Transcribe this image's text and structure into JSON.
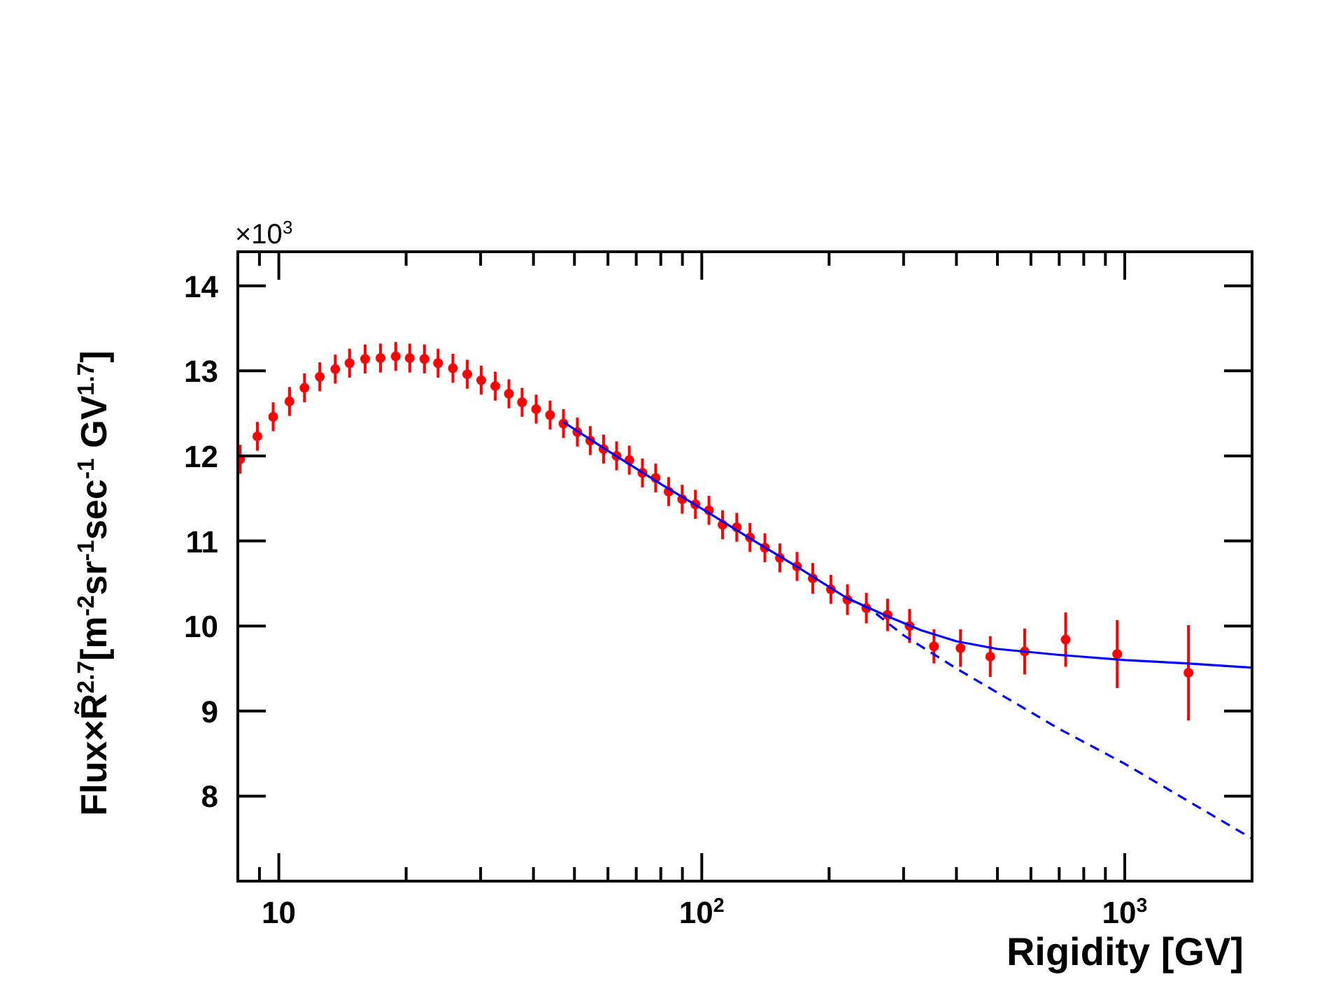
{
  "chart_data": {
    "type": "scatter",
    "xlabel": "Rigidity [GV]",
    "ylabel": "Flux×R̃$^{2.7}$[m$^{-2}$sr$^{-1}$sec$^{-1}$ GV$^{1.7}$]",
    "annotations": [
      "×10$^{3}$"
    ],
    "log": "x",
    "grid": false,
    "xlim": [
      8,
      2000
    ],
    "ylim": [
      7,
      14.4
    ],
    "xticks": [
      {
        "value": 8,
        "label": null
      },
      {
        "value": 9,
        "label": null
      },
      {
        "value": 10,
        "label": "10"
      },
      {
        "value": 20,
        "label": null
      },
      {
        "value": 30,
        "label": null
      },
      {
        "value": 40,
        "label": null
      },
      {
        "value": 50,
        "label": null
      },
      {
        "value": 60,
        "label": null
      },
      {
        "value": 70,
        "label": null
      },
      {
        "value": 80,
        "label": null
      },
      {
        "value": 90,
        "label": null
      },
      {
        "value": 100,
        "label": "10$^{2}$"
      },
      {
        "value": 200,
        "label": null
      },
      {
        "value": 300,
        "label": null
      },
      {
        "value": 400,
        "label": null
      },
      {
        "value": 500,
        "label": null
      },
      {
        "value": 600,
        "label": null
      },
      {
        "value": 700,
        "label": null
      },
      {
        "value": 800,
        "label": null
      },
      {
        "value": 900,
        "label": null
      },
      {
        "value": 1000,
        "label": "10$^{3}$"
      },
      {
        "value": 2000,
        "label": null
      }
    ],
    "yticks": [
      8,
      9,
      10,
      11,
      12,
      13,
      14
    ],
    "series": [
      {
        "type": "scatter",
        "color": "#ff0000",
        "marker": "circle",
        "x": [
          8.1,
          8.9,
          9.7,
          10.6,
          11.5,
          12.5,
          13.6,
          14.7,
          16.0,
          17.4,
          18.9,
          20.4,
          22.1,
          23.8,
          25.8,
          27.9,
          30.1,
          32.5,
          35.0,
          37.6,
          40.6,
          43.8,
          47.1,
          50.8,
          54.5,
          58.6,
          62.9,
          67.4,
          72.4,
          77.8,
          83.5,
          89.9,
          96.6,
          104,
          112,
          121,
          130,
          141,
          153,
          168,
          183,
          202,
          221,
          245,
          275,
          310,
          354,
          409,
          481,
          580,
          725,
          960,
          1415
        ],
        "values": [
          11.96,
          12.23,
          12.46,
          12.64,
          12.8,
          12.93,
          13.02,
          13.09,
          13.14,
          13.15,
          13.17,
          13.15,
          13.14,
          13.09,
          13.03,
          12.96,
          12.89,
          12.82,
          12.73,
          12.63,
          12.55,
          12.48,
          12.38,
          12.28,
          12.18,
          12.08,
          12.0,
          11.95,
          11.8,
          11.74,
          11.58,
          11.49,
          11.43,
          11.36,
          11.19,
          11.16,
          11.04,
          10.92,
          10.8,
          10.7,
          10.56,
          10.43,
          10.31,
          10.21,
          10.13,
          10.0,
          9.76,
          9.74,
          9.64,
          9.7,
          9.84,
          9.67,
          9.45
        ],
        "errors": [
          0.17,
          0.17,
          0.17,
          0.17,
          0.17,
          0.17,
          0.17,
          0.17,
          0.17,
          0.17,
          0.17,
          0.17,
          0.17,
          0.17,
          0.17,
          0.17,
          0.17,
          0.17,
          0.17,
          0.17,
          0.17,
          0.17,
          0.17,
          0.17,
          0.17,
          0.17,
          0.17,
          0.17,
          0.17,
          0.17,
          0.17,
          0.17,
          0.17,
          0.17,
          0.17,
          0.17,
          0.17,
          0.17,
          0.17,
          0.17,
          0.18,
          0.17,
          0.18,
          0.18,
          0.19,
          0.2,
          0.2,
          0.22,
          0.24,
          0.27,
          0.32,
          0.4,
          0.56
        ]
      },
      {
        "type": "line",
        "color": "#0000ff",
        "line_style": "solid",
        "marker": "none",
        "x": [
          47,
          60,
          80,
          100,
          130,
          170,
          220,
          270,
          330,
          400,
          500,
          700,
          1000,
          1400,
          2000
        ],
        "values": [
          12.4,
          12.06,
          11.67,
          11.38,
          11.03,
          10.68,
          10.33,
          10.13,
          9.95,
          9.82,
          9.73,
          9.66,
          9.6,
          9.56,
          9.51
        ]
      },
      {
        "type": "line",
        "color": "#0000ff",
        "line_style": "dashed",
        "marker": "none",
        "x": [
          220,
          250,
          300,
          400,
          700,
          1000,
          2000
        ],
        "values": [
          10.33,
          10.2,
          9.89,
          9.5,
          8.79,
          8.38,
          7.5
        ]
      }
    ]
  }
}
